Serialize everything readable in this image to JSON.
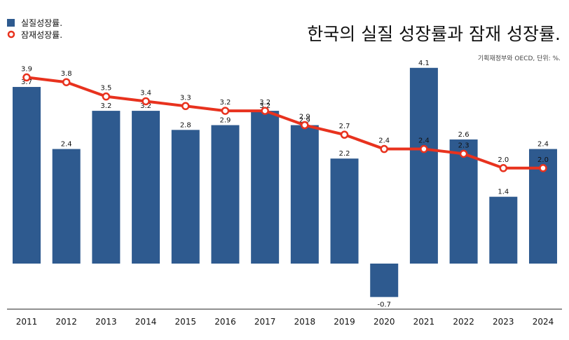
{
  "chart_data": {
    "type": "bar",
    "title": "한국의 실질 성장률과 잠재 성장률.",
    "subtitle": "기획재정부와 OECD, 단위: %.",
    "categories": [
      "2011",
      "2012",
      "2013",
      "2014",
      "2015",
      "2016",
      "2017",
      "2018",
      "2019",
      "2020",
      "2021",
      "2022",
      "2023",
      "2024"
    ],
    "series": [
      {
        "name": "실질성장률.",
        "type": "bar",
        "color": "#2e5a8f",
        "values": [
          3.7,
          2.4,
          3.2,
          3.2,
          2.8,
          2.9,
          3.2,
          2.9,
          2.2,
          -0.7,
          4.1,
          2.6,
          1.4,
          2.4
        ]
      },
      {
        "name": "잠재성장률.",
        "type": "line",
        "color": "#e8321e",
        "values": [
          3.9,
          3.8,
          3.5,
          3.4,
          3.3,
          3.2,
          3.2,
          2.9,
          2.7,
          2.4,
          2.4,
          2.3,
          2.0,
          2.0
        ]
      }
    ],
    "ylim": [
      -1.0,
      4.4
    ],
    "grid": false,
    "legend_position": "top-left"
  }
}
